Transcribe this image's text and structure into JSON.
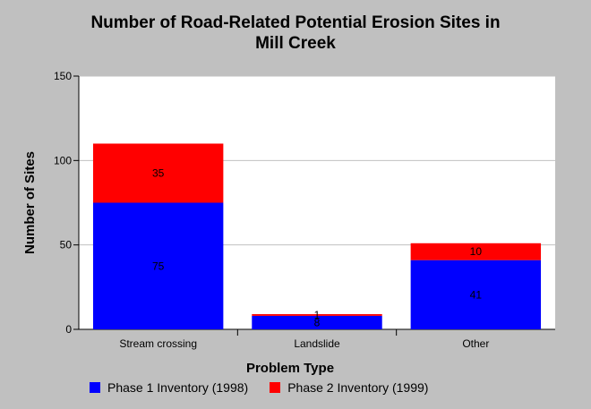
{
  "chart_data": {
    "type": "bar",
    "stacked": true,
    "title_line1": "Number of Road-Related Potential Erosion Sites in",
    "title_line2": "Mill Creek",
    "xlabel": "Problem Type",
    "ylabel": "Number of Sites",
    "categories": [
      "Stream crossing",
      "Landslide",
      "Other"
    ],
    "series": [
      {
        "name": "Phase 1 Inventory (1998)",
        "color": "#0000ff",
        "values": [
          75,
          8,
          41
        ],
        "labels": [
          "75",
          "8",
          "41"
        ]
      },
      {
        "name": "Phase 2 Inventory (1999)",
        "color": "#ff0000",
        "values": [
          35,
          1,
          10
        ],
        "labels": [
          "35",
          "1",
          "10"
        ]
      }
    ],
    "ylim": [
      0,
      150
    ],
    "yticks": [
      0,
      50,
      100,
      150
    ],
    "ytick_labels": [
      "0",
      "50",
      "100",
      "150"
    ],
    "grid": true,
    "legend_position": "bottom"
  }
}
